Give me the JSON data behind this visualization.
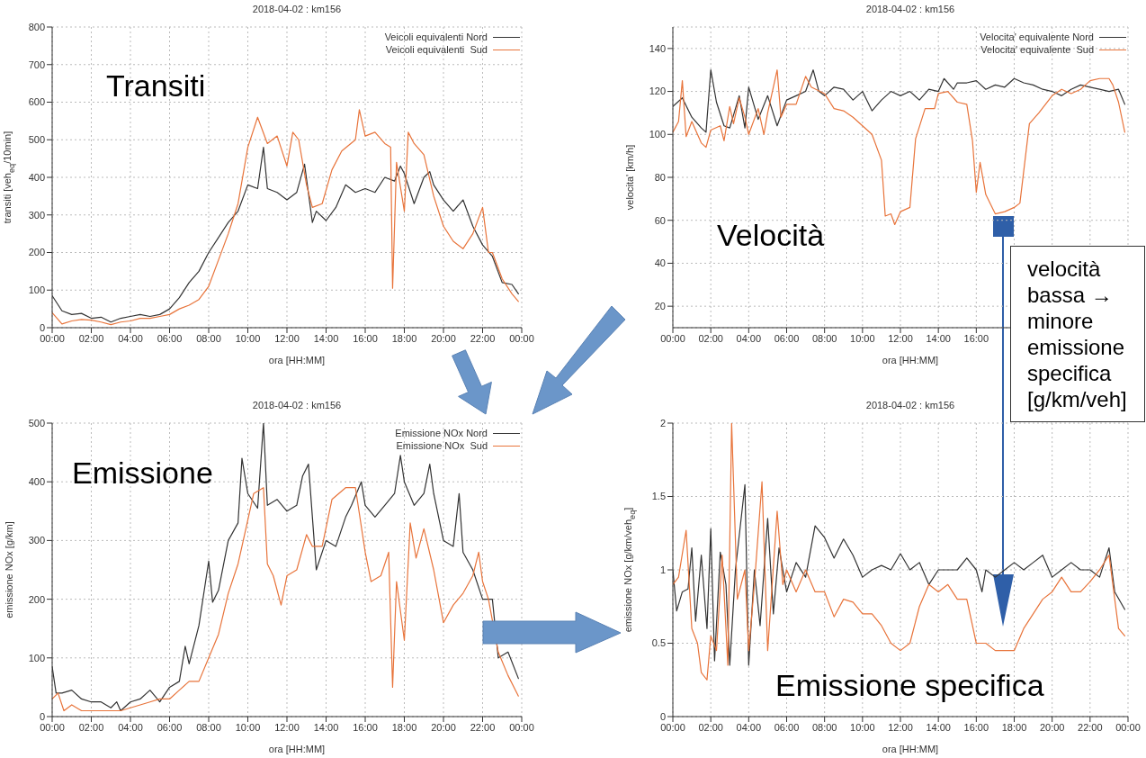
{
  "chart_data": [
    {
      "type": "line",
      "title": "2018-04-02  :  km156",
      "xlabel": "ora [HH:MM]",
      "ylabel": "transiti [veh$_{eq}$/10min]",
      "annotations": [
        "Transiti"
      ],
      "legend": "top right",
      "grid": true,
      "xlim": [
        0,
        24
      ],
      "ylim": [
        0,
        800
      ],
      "yticks": [
        0,
        100,
        200,
        300,
        400,
        500,
        600,
        700,
        800
      ],
      "xticks": [
        {
          "value": 0,
          "label": "00:00"
        },
        {
          "value": 2,
          "label": "02:00"
        },
        {
          "value": 4,
          "label": "04:00"
        },
        {
          "value": 6,
          "label": "06:00"
        },
        {
          "value": 8,
          "label": "08:00"
        },
        {
          "value": 10,
          "label": "10:00"
        },
        {
          "value": 12,
          "label": "12:00"
        },
        {
          "value": 14,
          "label": "14:00"
        },
        {
          "value": 16,
          "label": "16:00"
        },
        {
          "value": 18,
          "label": "18:00"
        },
        {
          "value": 20,
          "label": "20:00"
        },
        {
          "value": 22,
          "label": "22:00"
        },
        {
          "value": 24,
          "label": "00:00"
        }
      ],
      "series": [
        {
          "name": "Veicoli equivalenti Nord",
          "color": "#333333",
          "x": [
            0,
            0.5,
            1,
            1.5,
            2,
            2.5,
            3,
            3.5,
            4,
            4.5,
            5,
            5.5,
            6,
            6.5,
            7,
            7.5,
            8,
            8.5,
            9,
            9.5,
            10,
            10.5,
            10.8,
            11,
            11.5,
            12,
            12.5,
            12.9,
            13.3,
            13.5,
            14,
            14.5,
            15,
            15.5,
            16,
            16.5,
            17,
            17.5,
            17.8,
            18,
            18.5,
            19,
            19.3,
            19.5,
            20,
            20.5,
            21,
            21.5,
            22,
            22.5,
            23,
            23.5,
            23.83
          ],
          "values": [
            85,
            45,
            35,
            38,
            25,
            28,
            15,
            25,
            30,
            35,
            30,
            35,
            50,
            80,
            120,
            150,
            200,
            240,
            280,
            310,
            380,
            370,
            480,
            370,
            360,
            340,
            360,
            435,
            280,
            310,
            285,
            320,
            380,
            360,
            370,
            360,
            400,
            390,
            430,
            410,
            330,
            400,
            415,
            380,
            340,
            310,
            340,
            270,
            220,
            190,
            120,
            115,
            90
          ]
        },
        {
          "name": "Veicoli equivalenti  Sud",
          "color": "#e8743b",
          "x": [
            0,
            0.5,
            1,
            1.5,
            2,
            2.5,
            3,
            3.5,
            4,
            4.5,
            5,
            5.5,
            6,
            6.5,
            7,
            7.5,
            8,
            8.5,
            9,
            9.5,
            10,
            10.5,
            11,
            11.5,
            12,
            12.3,
            12.6,
            13,
            13.3,
            13.8,
            14.3,
            14.8,
            15.5,
            15.7,
            16,
            16.5,
            17,
            17.3,
            17.4,
            17.6,
            18,
            18.2,
            18.5,
            19,
            19.5,
            20,
            20.5,
            21,
            21.5,
            22,
            22.3,
            22.5,
            23,
            23.5,
            23.83
          ],
          "values": [
            40,
            10,
            18,
            22,
            20,
            15,
            8,
            15,
            18,
            25,
            25,
            30,
            35,
            50,
            60,
            75,
            110,
            180,
            250,
            330,
            480,
            560,
            490,
            510,
            430,
            520,
            500,
            380,
            320,
            330,
            420,
            470,
            500,
            580,
            510,
            520,
            490,
            480,
            105,
            440,
            310,
            520,
            490,
            460,
            350,
            270,
            230,
            210,
            250,
            320,
            200,
            200,
            130,
            90,
            70
          ]
        }
      ]
    },
    {
      "type": "line",
      "title": "2018-04-02  :  km156",
      "xlabel": "ora [HH:MM]",
      "ylabel": "velocita' [km/h]",
      "annotations": [
        "Velocità",
        "velocità bassa → minore emissione specifica [g/km/veh]"
      ],
      "legend": "top right",
      "grid": true,
      "xlim": [
        0,
        24
      ],
      "ylim": [
        10,
        150
      ],
      "yticks": [
        20,
        40,
        60,
        80,
        100,
        120,
        140
      ],
      "xticks": [
        {
          "value": 0,
          "label": "00:00"
        },
        {
          "value": 2,
          "label": "02:00"
        },
        {
          "value": 4,
          "label": "04:00"
        },
        {
          "value": 6,
          "label": "06:00"
        },
        {
          "value": 8,
          "label": "08:00"
        },
        {
          "value": 10,
          "label": "10:00"
        },
        {
          "value": 12,
          "label": "12:00"
        },
        {
          "value": 14,
          "label": "14:00"
        },
        {
          "value": 16,
          "label": "16:00"
        },
        {
          "value": 18,
          "label": null
        },
        {
          "value": 20,
          "label": null
        },
        {
          "value": 22,
          "label": null
        },
        {
          "value": 24,
          "label": null
        }
      ],
      "series": [
        {
          "name": "Velocita' equivalente Nord",
          "color": "#333333",
          "x": [
            0,
            0.5,
            1,
            1.5,
            1.75,
            2,
            2.3,
            2.7,
            3,
            3.5,
            3.8,
            4,
            4.5,
            5,
            5.5,
            6,
            6.5,
            7,
            7.4,
            7.7,
            8,
            8.5,
            9,
            9.5,
            10,
            10.5,
            11,
            11.5,
            12,
            12.5,
            13,
            13.5,
            14,
            14.3,
            14.8,
            15,
            15.5,
            16,
            16.5,
            17,
            17.5,
            18,
            18.5,
            19,
            19.5,
            20,
            20.5,
            21,
            21.5,
            22,
            22.5,
            23,
            23.5,
            23.83
          ],
          "values": [
            113,
            117,
            108,
            103,
            101,
            130,
            115,
            104,
            103,
            118,
            103,
            122,
            107,
            118,
            104,
            116,
            118,
            120,
            130,
            120,
            118,
            122,
            121,
            116,
            120,
            111,
            116,
            120,
            118,
            120,
            116,
            121,
            120,
            126,
            121,
            124,
            124,
            125,
            121,
            123,
            122,
            126,
            124,
            123,
            121,
            120,
            118,
            121,
            123,
            122,
            121,
            120,
            121,
            114
          ]
        },
        {
          "name": "Velocita' equivalente  Sud",
          "color": "#e8743b",
          "x": [
            0,
            0.3,
            0.5,
            0.7,
            1,
            1.5,
            1.75,
            2,
            2.5,
            2.7,
            3,
            3.2,
            3.5,
            3.8,
            4,
            4.5,
            4.8,
            5,
            5.5,
            5.7,
            6,
            6.5,
            7,
            7.3,
            8,
            8.5,
            9,
            9.5,
            10,
            10.5,
            11,
            11.2,
            11.5,
            11.7,
            12,
            12.5,
            12.8,
            13.3,
            13.8,
            14,
            14.5,
            15,
            15.5,
            15.8,
            16,
            16.2,
            16.5,
            17,
            17.5,
            18,
            18.3,
            18.8,
            19.3,
            20,
            20.5,
            21,
            21.5,
            22,
            22.5,
            23,
            23.2,
            23.5,
            23.83
          ],
          "values": [
            101,
            106,
            125,
            99,
            106,
            96,
            94,
            102,
            104,
            97,
            113,
            105,
            117,
            108,
            100,
            112,
            100,
            110,
            130,
            108,
            114,
            114,
            127,
            122,
            119,
            112,
            111,
            108,
            104,
            100,
            88,
            62,
            63,
            58,
            64,
            66,
            98,
            112,
            112,
            119,
            120,
            115,
            114,
            97,
            73,
            87,
            72,
            63,
            64,
            66,
            68,
            105,
            110,
            118,
            121,
            119,
            121,
            125,
            126,
            126,
            123,
            115,
            101
          ]
        }
      ]
    },
    {
      "type": "line",
      "title": "2018-04-02  :  km156",
      "xlabel": "ora [HH:MM]",
      "ylabel": "emissione NOx [g/km]",
      "annotations": [
        "Emissione"
      ],
      "legend": "top right",
      "grid": true,
      "xlim": [
        0,
        24
      ],
      "ylim": [
        0,
        500
      ],
      "yticks": [
        0,
        100,
        200,
        300,
        400,
        500
      ],
      "xticks": [
        {
          "value": 0,
          "label": "00:00"
        },
        {
          "value": 2,
          "label": "02:00"
        },
        {
          "value": 4,
          "label": "04:00"
        },
        {
          "value": 6,
          "label": "06:00"
        },
        {
          "value": 8,
          "label": "08:00"
        },
        {
          "value": 10,
          "label": "10:00"
        },
        {
          "value": 12,
          "label": "12:00"
        },
        {
          "value": 14,
          "label": "14:00"
        },
        {
          "value": 16,
          "label": "16:00"
        },
        {
          "value": 18,
          "label": "18:00"
        },
        {
          "value": 20,
          "label": "20:00"
        },
        {
          "value": 22,
          "label": "22:00"
        },
        {
          "value": 24,
          "label": "00:00"
        }
      ],
      "series": [
        {
          "name": "Emissione NOx Nord",
          "color": "#333333",
          "x": [
            0,
            0.2,
            0.5,
            1,
            1.5,
            2,
            2.5,
            3,
            3.3,
            3.5,
            4,
            4.5,
            5,
            5.5,
            6,
            6.5,
            6.8,
            7,
            7.5,
            8,
            8.2,
            8.5,
            9,
            9.5,
            9.7,
            10,
            10.5,
            10.8,
            11,
            11.5,
            12,
            12.5,
            12.8,
            13.1,
            13.5,
            14,
            14.5,
            15,
            15.3,
            15.8,
            16,
            16.5,
            17,
            17.5,
            17.8,
            18,
            18.5,
            19,
            19.3,
            19.5,
            20,
            20.5,
            20.8,
            21,
            21.5,
            22,
            22.5,
            22.8,
            23.3,
            23.83
          ],
          "values": [
            85,
            40,
            40,
            45,
            30,
            25,
            25,
            15,
            25,
            10,
            25,
            30,
            45,
            25,
            50,
            60,
            120,
            90,
            155,
            265,
            195,
            215,
            300,
            330,
            440,
            380,
            355,
            500,
            360,
            370,
            350,
            360,
            410,
            430,
            250,
            300,
            290,
            340,
            360,
            400,
            360,
            340,
            360,
            380,
            445,
            400,
            360,
            380,
            430,
            380,
            300,
            290,
            380,
            280,
            250,
            200,
            200,
            100,
            110,
            65
          ]
        },
        {
          "name": "Emissione NOx  Sud",
          "color": "#e8743b",
          "x": [
            0,
            0.3,
            0.6,
            1,
            1.5,
            2,
            2.5,
            3,
            3.5,
            4,
            4.5,
            5,
            5.5,
            6,
            6.5,
            7,
            7.5,
            8,
            8.5,
            9,
            9.5,
            10,
            10.3,
            10.8,
            11,
            11.3,
            11.7,
            12,
            12.5,
            13,
            13.3,
            13.8,
            14.3,
            15,
            15.5,
            16,
            16.3,
            16.8,
            17.2,
            17.4,
            17.6,
            18,
            18.3,
            18.6,
            19,
            19.5,
            20,
            20.5,
            21,
            21.5,
            21.8,
            22,
            22.3,
            22.8,
            23.3,
            23.83
          ],
          "values": [
            30,
            40,
            10,
            20,
            10,
            10,
            10,
            10,
            10,
            15,
            20,
            25,
            30,
            30,
            45,
            60,
            60,
            100,
            140,
            210,
            260,
            335,
            380,
            390,
            260,
            240,
            190,
            240,
            250,
            310,
            290,
            290,
            370,
            390,
            390,
            280,
            230,
            240,
            280,
            50,
            230,
            130,
            330,
            270,
            320,
            250,
            160,
            190,
            210,
            240,
            280,
            230,
            200,
            110,
            70,
            35
          ]
        }
      ]
    },
    {
      "type": "line",
      "title": "2018-04-02  :  km156",
      "xlabel": "ora [HH:MM]",
      "ylabel": "emissione NOx [g/km/veh$_{eq}$]",
      "annotations": [
        "Emissione specifica"
      ],
      "grid": true,
      "xlim": [
        0,
        24
      ],
      "ylim": [
        0,
        2
      ],
      "yticks": [
        0,
        0.5,
        1,
        1.5,
        2
      ],
      "xticks": [
        {
          "value": 0,
          "label": "00:00"
        },
        {
          "value": 2,
          "label": "02:00"
        },
        {
          "value": 4,
          "label": "04:00"
        },
        {
          "value": 6,
          "label": "06:00"
        },
        {
          "value": 8,
          "label": "08:00"
        },
        {
          "value": 10,
          "label": "10:00"
        },
        {
          "value": 12,
          "label": "12:00"
        },
        {
          "value": 14,
          "label": "14:00"
        },
        {
          "value": 16,
          "label": "16:00"
        },
        {
          "value": 18,
          "label": "18:00"
        },
        {
          "value": 20,
          "label": "20:00"
        },
        {
          "value": 22,
          "label": "22:00"
        },
        {
          "value": 24,
          "label": "00:00"
        }
      ],
      "series": [
        {
          "color": "#333333",
          "x": [
            0,
            0.2,
            0.5,
            0.8,
            1,
            1.2,
            1.5,
            1.8,
            2,
            2.2,
            2.5,
            2.8,
            3,
            3.3,
            3.8,
            4,
            4.3,
            4.6,
            5,
            5.3,
            5.6,
            6,
            6.5,
            7,
            7.5,
            8,
            8.5,
            9,
            9.5,
            10,
            10.5,
            11,
            11.5,
            12,
            12.5,
            13,
            13.5,
            14,
            14.5,
            15,
            15.5,
            16,
            16.3,
            16.5,
            17,
            17.5,
            18,
            18.5,
            19,
            19.5,
            20,
            20.5,
            21,
            21.5,
            22,
            22.5,
            23,
            23.3,
            23.83
          ],
          "values": [
            1.0,
            0.72,
            0.85,
            0.87,
            1.15,
            0.65,
            1.1,
            0.6,
            1.28,
            0.38,
            1.12,
            0.9,
            0.35,
            1.0,
            1.58,
            0.35,
            1.0,
            0.62,
            1.35,
            0.7,
            1.15,
            0.85,
            1.05,
            0.95,
            1.3,
            1.22,
            1.08,
            1.21,
            1.1,
            0.95,
            1.0,
            1.03,
            1.0,
            1.11,
            1.0,
            1.05,
            0.9,
            1.0,
            1.0,
            1.0,
            1.08,
            1.0,
            0.85,
            1.0,
            0.95,
            1.0,
            1.05,
            1.0,
            1.05,
            1.1,
            0.95,
            1.0,
            1.05,
            1.0,
            1.0,
            0.95,
            1.15,
            0.85,
            0.73
          ]
        },
        {
          "color": "#e8743b",
          "x": [
            0,
            0.3,
            0.7,
            1,
            1.3,
            1.5,
            1.8,
            2,
            2.3,
            2.6,
            2.9,
            3.1,
            3.4,
            3.8,
            4,
            4.3,
            4.7,
            5,
            5.5,
            5.8,
            6,
            6.5,
            7,
            7.5,
            8,
            8.5,
            9,
            9.5,
            10,
            10.5,
            11,
            11.5,
            12,
            12.5,
            13,
            13.5,
            14,
            14.5,
            15,
            15.5,
            16,
            16.5,
            17,
            17.5,
            18,
            18.5,
            19,
            19.5,
            20,
            20.5,
            21,
            21.5,
            22,
            22.5,
            23,
            23.5,
            23.83
          ],
          "values": [
            0.9,
            0.95,
            1.27,
            0.6,
            0.5,
            0.3,
            0.25,
            0.55,
            0.45,
            1.1,
            0.35,
            2.0,
            0.8,
            1.0,
            0.45,
            0.9,
            1.6,
            0.45,
            1.4,
            0.9,
            1.0,
            0.85,
            1.0,
            0.85,
            0.85,
            0.68,
            0.8,
            0.78,
            0.7,
            0.7,
            0.62,
            0.5,
            0.45,
            0.5,
            0.75,
            0.9,
            0.85,
            0.9,
            0.8,
            0.8,
            0.5,
            0.5,
            0.45,
            0.45,
            0.45,
            0.6,
            0.7,
            0.8,
            0.85,
            0.95,
            0.85,
            0.85,
            0.92,
            1.0,
            1.1,
            0.6,
            0.55
          ]
        }
      ]
    }
  ]
}
